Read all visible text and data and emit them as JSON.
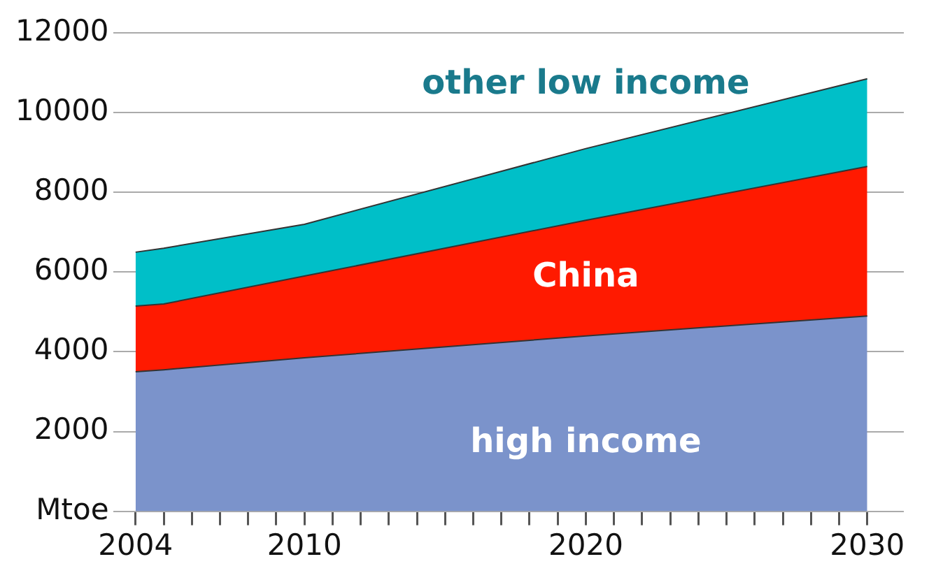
{
  "chart_data": {
    "type": "area",
    "stacked": true,
    "x": [
      2004,
      2005,
      2010,
      2020,
      2030
    ],
    "series": [
      {
        "name": "high income",
        "color": "#7b93cb",
        "values": [
          3500,
          3550,
          3850,
          4400,
          4900
        ]
      },
      {
        "name": "China",
        "color": "#ff1a00",
        "values": [
          1650,
          1650,
          2050,
          2900,
          3750
        ]
      },
      {
        "name": "other low income",
        "color": "#00bfc8",
        "values": [
          1350,
          1400,
          1300,
          1800,
          2200
        ]
      }
    ],
    "xlim": [
      2003.2,
      2031.3
    ],
    "xticks": [
      2004,
      {
        "value": 2005,
        "label": null
      },
      {
        "value": 2006,
        "label": null
      },
      {
        "value": 2007,
        "label": null
      },
      {
        "value": 2008,
        "label": null
      },
      {
        "value": 2009,
        "label": null
      },
      2010,
      {
        "value": 2011,
        "label": null
      },
      {
        "value": 2012,
        "label": null
      },
      {
        "value": 2013,
        "label": null
      },
      {
        "value": 2014,
        "label": null
      },
      {
        "value": 2015,
        "label": null
      },
      {
        "value": 2016,
        "label": null
      },
      {
        "value": 2017,
        "label": null
      },
      {
        "value": 2018,
        "label": null
      },
      {
        "value": 2019,
        "label": null
      },
      2020,
      {
        "value": 2021,
        "label": null
      },
      {
        "value": 2022,
        "label": null
      },
      {
        "value": 2023,
        "label": null
      },
      {
        "value": 2024,
        "label": null
      },
      {
        "value": 2025,
        "label": null
      },
      {
        "value": 2026,
        "label": null
      },
      {
        "value": 2027,
        "label": null
      },
      {
        "value": 2028,
        "label": null
      },
      {
        "value": 2029,
        "label": null
      },
      2030
    ],
    "ylim": [
      0,
      12000
    ],
    "yticks": [
      {
        "value": 0,
        "label": "Mtoe"
      },
      2000,
      4000,
      6000,
      8000,
      10000,
      12000
    ],
    "grid": "y",
    "legend": false
  }
}
